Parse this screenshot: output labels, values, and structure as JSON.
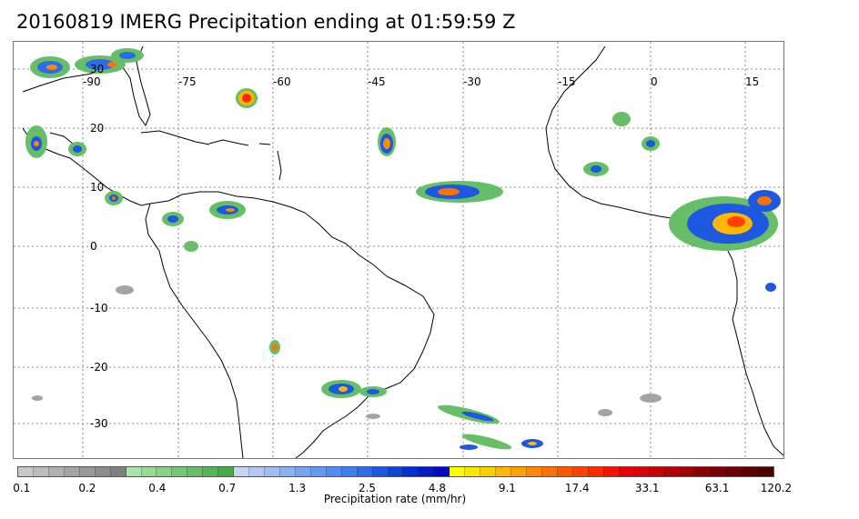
{
  "title": "20160819 IMERG Precipitation ending at 01:59:59 Z",
  "map": {
    "longitude_labels": [
      "-90",
      "-75",
      "-60",
      "-45",
      "-30",
      "-15",
      "0",
      "15"
    ],
    "latitude_labels": [
      "30",
      "20",
      "10",
      "0",
      "-10",
      "-20",
      "-30"
    ],
    "gridlines": "dotted",
    "background": "#ffffff",
    "coastline_color": "#000000"
  },
  "legend": {
    "title": "Precipitation rate (mm/hr)",
    "tick_labels": [
      "0.1",
      "0.2",
      "0.4",
      "0.7",
      "1.3",
      "2.5",
      "4.8",
      "9.1",
      "17.4",
      "33.1",
      "63.1",
      "120.2"
    ],
    "colors": [
      "#c8c8c8",
      "#bcbcbc",
      "#b0b0b0",
      "#a4a4a4",
      "#989898",
      "#8c8c8c",
      "#808080",
      "#a6e6a6",
      "#96dc96",
      "#86d286",
      "#76c876",
      "#66be66",
      "#56b456",
      "#46aa46",
      "#c8d4f4",
      "#b4c8f4",
      "#a0bcf4",
      "#8cb0f4",
      "#78a4f4",
      "#6498f4",
      "#508cf4",
      "#3c80f0",
      "#2c6ce8",
      "#1c58e0",
      "#0c44d8",
      "#0030d0",
      "#001cc8",
      "#0008c0",
      "#ffff00",
      "#ffe800",
      "#ffd000",
      "#ffb800",
      "#ffa000",
      "#ff8800",
      "#ff7000",
      "#ff5800",
      "#ff4000",
      "#ff2800",
      "#f81000",
      "#e80000",
      "#d80000",
      "#c80000",
      "#b40000",
      "#a00000",
      "#8c0000",
      "#780000",
      "#6a0000",
      "#5c0000",
      "#4e0000"
    ]
  },
  "features": {
    "coastlines": "Americas, Africa, Caribbean",
    "precipitation_clusters": [
      "Gulf of Mexico coast",
      "Central America",
      "Caribbean (~60W, 28N)",
      "Central Atlantic (~43W, 15N)",
      "ITCZ (~30W, 10N)",
      "West Africa",
      "Northern South America",
      "Southern Brazil (~25S)",
      "South Atlantic bands"
    ]
  }
}
